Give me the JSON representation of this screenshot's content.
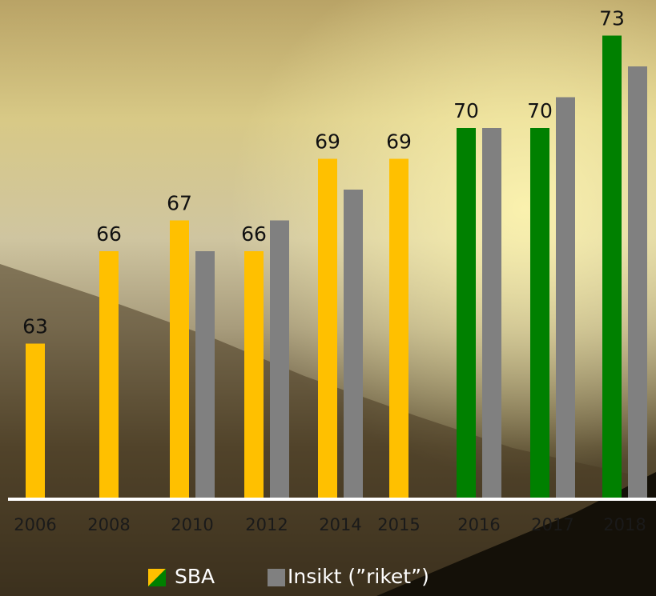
{
  "chart_data": {
    "type": "bar",
    "categories": [
      "2006",
      "2008",
      "2010",
      "2012",
      "2014",
      "2015",
      "2016",
      "2017",
      "2018"
    ],
    "series": [
      {
        "name": "SBA",
        "colors": [
          "#ffc000",
          "#ffc000",
          "#ffc000",
          "#ffc000",
          "#ffc000",
          "#ffc000",
          "#008000",
          "#008000",
          "#008000"
        ],
        "values": [
          63,
          66,
          67,
          66,
          69,
          69,
          70,
          70,
          73
        ]
      },
      {
        "name": "Insikt (”riket”)",
        "color": "#808080",
        "values": [
          null,
          null,
          66,
          67,
          68,
          null,
          70,
          71,
          72
        ]
      }
    ],
    "ylim": [
      58,
      74
    ]
  }
}
